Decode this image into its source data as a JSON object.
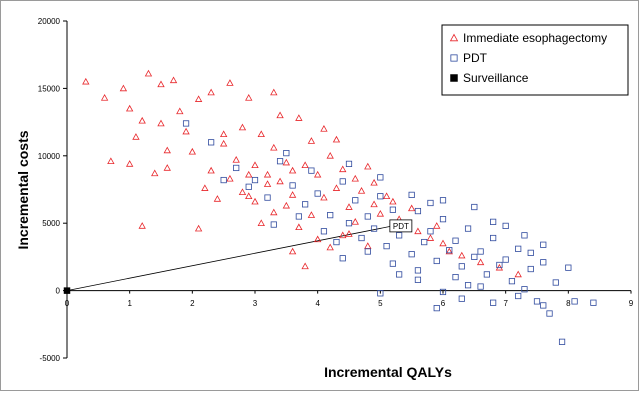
{
  "chart_data": {
    "type": "scatter",
    "title": "",
    "xlabel": "Incremental QALYs",
    "ylabel": "Incremental costs",
    "xlim": [
      0,
      9
    ],
    "ylim": [
      -5000,
      20000
    ],
    "x_ticks": [
      "0",
      "1",
      "2",
      "3",
      "4",
      "5",
      "6",
      "7",
      "8",
      "9"
    ],
    "y_ticks": [
      "-5000",
      "0",
      "5000",
      "10000",
      "15000",
      "20000"
    ],
    "grid": false,
    "legend_position": "top-right",
    "series": [
      {
        "name": "Immediate esophagectomy",
        "marker": "triangle-open",
        "color": "#e8262a",
        "points": [
          [
            0.3,
            15500
          ],
          [
            0.6,
            14300
          ],
          [
            0.9,
            15000
          ],
          [
            1.3,
            16100
          ],
          [
            1.5,
            15300
          ],
          [
            1.7,
            15600
          ],
          [
            1.0,
            13500
          ],
          [
            1.2,
            12600
          ],
          [
            1.5,
            12400
          ],
          [
            1.8,
            13300
          ],
          [
            2.1,
            14200
          ],
          [
            2.3,
            14700
          ],
          [
            2.6,
            15400
          ],
          [
            2.9,
            14300
          ],
          [
            3.3,
            14700
          ],
          [
            0.7,
            9600
          ],
          [
            1.0,
            9400
          ],
          [
            1.2,
            4800
          ],
          [
            1.4,
            8700
          ],
          [
            1.6,
            10400
          ],
          [
            1.9,
            11800
          ],
          [
            2.1,
            4600
          ],
          [
            2.3,
            8900
          ],
          [
            2.5,
            10900
          ],
          [
            2.7,
            9700
          ],
          [
            2.9,
            8600
          ],
          [
            3.1,
            11600
          ],
          [
            3.3,
            10600
          ],
          [
            3.5,
            9500
          ],
          [
            3.7,
            12800
          ],
          [
            3.9,
            11100
          ],
          [
            4.1,
            12000
          ],
          [
            2.2,
            7600
          ],
          [
            2.4,
            6800
          ],
          [
            2.6,
            8300
          ],
          [
            2.8,
            7300
          ],
          [
            3.0,
            6600
          ],
          [
            3.2,
            7900
          ],
          [
            3.4,
            8100
          ],
          [
            3.6,
            7100
          ],
          [
            3.8,
            9300
          ],
          [
            4.0,
            8600
          ],
          [
            4.2,
            10000
          ],
          [
            4.4,
            9000
          ],
          [
            4.6,
            8300
          ],
          [
            3.3,
            5800
          ],
          [
            3.5,
            6300
          ],
          [
            3.7,
            4700
          ],
          [
            3.9,
            5600
          ],
          [
            4.1,
            6900
          ],
          [
            4.3,
            7600
          ],
          [
            4.5,
            6200
          ],
          [
            4.7,
            7400
          ],
          [
            4.9,
            8000
          ],
          [
            5.1,
            7000
          ],
          [
            3.6,
            2900
          ],
          [
            3.8,
            1800
          ],
          [
            4.0,
            3800
          ],
          [
            4.2,
            3200
          ],
          [
            4.4,
            4100
          ],
          [
            4.6,
            5100
          ],
          [
            4.8,
            3300
          ],
          [
            5.0,
            5700
          ],
          [
            5.2,
            6600
          ],
          [
            5.4,
            4900
          ],
          [
            5.6,
            4400
          ],
          [
            5.8,
            3900
          ],
          [
            6.0,
            3500
          ],
          [
            6.3,
            2600
          ],
          [
            6.6,
            2100
          ],
          [
            6.9,
            1700
          ],
          [
            7.2,
            1200
          ],
          [
            2.0,
            10300
          ],
          [
            2.8,
            12100
          ],
          [
            3.4,
            13000
          ],
          [
            4.3,
            11200
          ],
          [
            1.1,
            11400
          ],
          [
            1.6,
            9100
          ],
          [
            2.5,
            11600
          ],
          [
            3.0,
            9300
          ],
          [
            3.2,
            8600
          ],
          [
            3.6,
            8900
          ],
          [
            4.8,
            9200
          ],
          [
            5.5,
            6100
          ],
          [
            5.3,
            5300
          ],
          [
            4.5,
            4200
          ],
          [
            4.9,
            6400
          ],
          [
            6.1,
            2900
          ],
          [
            5.9,
            4800
          ],
          [
            2.9,
            7000
          ],
          [
            3.1,
            5000
          ]
        ]
      },
      {
        "name": "PDT",
        "marker": "square-open",
        "color": "#2f4a9e",
        "points": [
          [
            1.9,
            12400
          ],
          [
            2.3,
            11000
          ],
          [
            2.7,
            9100
          ],
          [
            3.0,
            8200
          ],
          [
            3.2,
            6900
          ],
          [
            3.4,
            9600
          ],
          [
            3.6,
            7800
          ],
          [
            3.8,
            6400
          ],
          [
            4.0,
            7200
          ],
          [
            4.2,
            5600
          ],
          [
            4.4,
            8100
          ],
          [
            4.6,
            6700
          ],
          [
            4.8,
            5500
          ],
          [
            5.0,
            7000
          ],
          [
            5.2,
            6000
          ],
          [
            5.4,
            4800
          ],
          [
            5.6,
            5900
          ],
          [
            5.8,
            4400
          ],
          [
            6.0,
            5300
          ],
          [
            6.2,
            3700
          ],
          [
            6.4,
            4600
          ],
          [
            6.6,
            2900
          ],
          [
            6.8,
            3900
          ],
          [
            7.0,
            2300
          ],
          [
            7.2,
            3100
          ],
          [
            7.4,
            1600
          ],
          [
            7.6,
            2100
          ],
          [
            7.8,
            600
          ],
          [
            4.1,
            4400
          ],
          [
            4.3,
            3600
          ],
          [
            4.5,
            5000
          ],
          [
            4.7,
            3900
          ],
          [
            4.9,
            4600
          ],
          [
            5.1,
            3300
          ],
          [
            5.3,
            4100
          ],
          [
            5.5,
            2700
          ],
          [
            5.7,
            3600
          ],
          [
            5.9,
            2200
          ],
          [
            6.1,
            3000
          ],
          [
            6.3,
            1800
          ],
          [
            6.5,
            2500
          ],
          [
            6.7,
            1200
          ],
          [
            6.9,
            1900
          ],
          [
            7.1,
            700
          ],
          [
            7.3,
            100
          ],
          [
            7.5,
            -800
          ],
          [
            7.7,
            -1700
          ],
          [
            7.9,
            -3800
          ],
          [
            5.0,
            -200
          ],
          [
            5.3,
            1200
          ],
          [
            5.6,
            800
          ],
          [
            6.0,
            -100
          ],
          [
            6.4,
            400
          ],
          [
            6.8,
            -900
          ],
          [
            7.2,
            -400
          ],
          [
            7.6,
            -1100
          ],
          [
            8.1,
            -800
          ],
          [
            8.4,
            -900
          ],
          [
            3.5,
            10200
          ],
          [
            3.9,
            8900
          ],
          [
            4.5,
            9400
          ],
          [
            5.0,
            8400
          ],
          [
            5.5,
            7100
          ],
          [
            6.0,
            6700
          ],
          [
            6.5,
            6200
          ],
          [
            7.0,
            4800
          ],
          [
            7.3,
            4100
          ],
          [
            7.6,
            3400
          ],
          [
            4.4,
            2400
          ],
          [
            4.8,
            2900
          ],
          [
            5.2,
            2000
          ],
          [
            5.6,
            1500
          ],
          [
            6.2,
            1000
          ],
          [
            6.6,
            300
          ],
          [
            3.3,
            4900
          ],
          [
            3.7,
            5500
          ],
          [
            2.9,
            7700
          ],
          [
            2.5,
            8200
          ],
          [
            5.8,
            6500
          ],
          [
            6.8,
            5100
          ],
          [
            7.4,
            2800
          ],
          [
            8.0,
            1700
          ],
          [
            6.3,
            -600
          ],
          [
            5.9,
            -1300
          ]
        ]
      },
      {
        "name": "Surveillance",
        "marker": "square-filled",
        "color": "#000000",
        "points": [
          [
            0,
            0
          ]
        ]
      }
    ],
    "annotations": [
      {
        "text": "PDT",
        "x": 5.2,
        "y": 4800
      }
    ],
    "reference_line": {
      "from": [
        0,
        0
      ],
      "to": [
        5.2,
        4800
      ]
    }
  }
}
